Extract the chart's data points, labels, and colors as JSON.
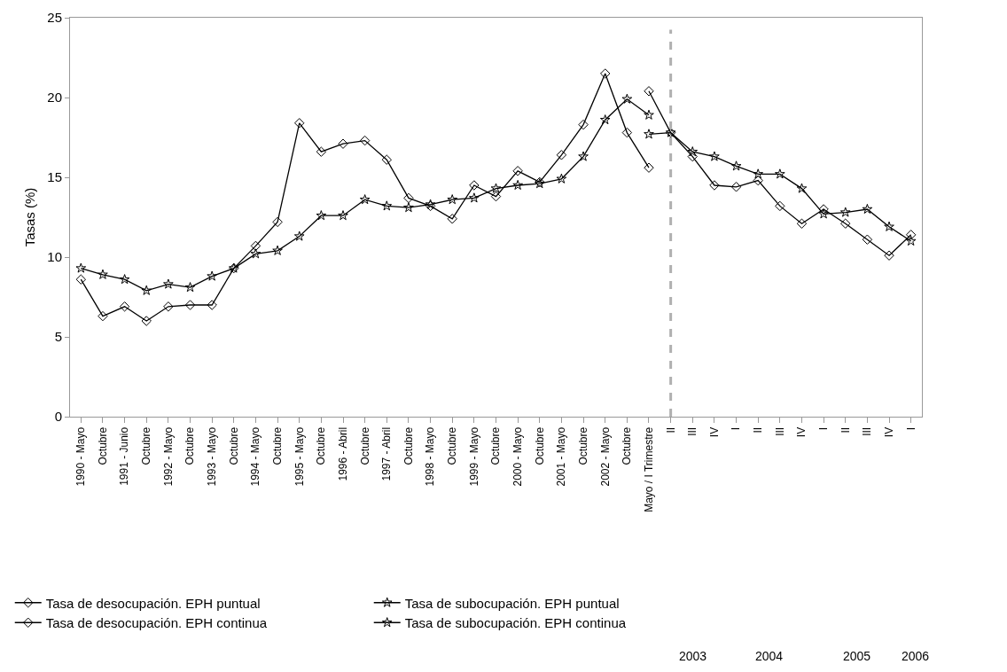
{
  "chart_data": {
    "type": "line",
    "ylabel": "Tasas (%)",
    "categories": [
      "1990 - Mayo",
      "Octubre",
      "1991 - Junio",
      "Octubre",
      "1992 - Mayo",
      "Octubre",
      "1993 - Mayo",
      "Octubre",
      "1994 - Mayo",
      "Octubre",
      "1995 - Mayo",
      "Octubre",
      "1996 - Abril",
      "Octubre",
      "1997 - Abril",
      "Octubre",
      "1998 - Mayo",
      "Octubre",
      "1999 - Mayo",
      "Octubre",
      "2000 - Mayo",
      "Octubre",
      "2001 - Mayo",
      "Octubre",
      "2002 - Mayo",
      "Octubre",
      "Mayo / I Trimestre",
      "II",
      "III",
      "IV",
      "I",
      "II",
      "III",
      "IV",
      "I",
      "II",
      "III",
      "IV",
      "I"
    ],
    "series": [
      {
        "name": "Tasa de desocupación. EPH puntual",
        "color": "#000000",
        "marker": "diamond",
        "values": [
          8.6,
          6.3,
          6.9,
          6.0,
          6.9,
          7.0,
          7.0,
          9.3,
          10.7,
          12.2,
          18.4,
          16.6,
          17.1,
          17.3,
          16.1,
          13.7,
          13.2,
          12.4,
          14.5,
          13.8,
          15.4,
          14.7,
          16.4,
          18.3,
          21.5,
          17.8,
          15.6,
          null,
          null,
          null,
          null,
          null,
          null,
          null,
          null,
          null,
          null,
          null,
          null
        ]
      },
      {
        "name": "Tasa de subocupación. EPH puntual",
        "color": "#000000",
        "marker": "star",
        "values": [
          9.3,
          8.9,
          8.6,
          7.9,
          8.3,
          8.1,
          8.8,
          9.3,
          10.2,
          10.4,
          11.3,
          12.6,
          12.6,
          13.6,
          13.2,
          13.1,
          13.3,
          13.6,
          13.7,
          14.3,
          14.5,
          14.6,
          14.9,
          16.3,
          18.6,
          19.9,
          18.9,
          null,
          null,
          null,
          null,
          null,
          null,
          null,
          null,
          null,
          null,
          null,
          null
        ]
      },
      {
        "name": "Tasa de desocupación. EPH continua",
        "color": "#000000",
        "marker": "diamond",
        "values": [
          null,
          null,
          null,
          null,
          null,
          null,
          null,
          null,
          null,
          null,
          null,
          null,
          null,
          null,
          null,
          null,
          null,
          null,
          null,
          null,
          null,
          null,
          null,
          null,
          null,
          null,
          20.4,
          17.8,
          16.3,
          14.5,
          14.4,
          14.8,
          13.2,
          12.1,
          13.0,
          12.1,
          11.1,
          10.1,
          11.4
        ]
      },
      {
        "name": "Tasa de subocupación. EPH continua",
        "color": "#000000",
        "marker": "star",
        "values": [
          null,
          null,
          null,
          null,
          null,
          null,
          null,
          null,
          null,
          null,
          null,
          null,
          null,
          null,
          null,
          null,
          null,
          null,
          null,
          null,
          null,
          null,
          null,
          null,
          null,
          null,
          17.7,
          17.8,
          16.6,
          16.3,
          15.7,
          15.2,
          15.2,
          14.3,
          12.7,
          12.8,
          13.0,
          11.9,
          11.0
        ]
      }
    ],
    "ylim": [
      0,
      25
    ],
    "yticks": [
      0,
      5,
      10,
      15,
      20,
      25
    ],
    "grid": false,
    "legend": "bottom left",
    "line_style": "solid",
    "ref_lines": [
      {
        "axis": "x",
        "value": "II",
        "color": "#b0b0b0",
        "line_style": "dashed"
      }
    ],
    "annotations": [
      "2003",
      "2004",
      "2005",
      "2006"
    ]
  }
}
